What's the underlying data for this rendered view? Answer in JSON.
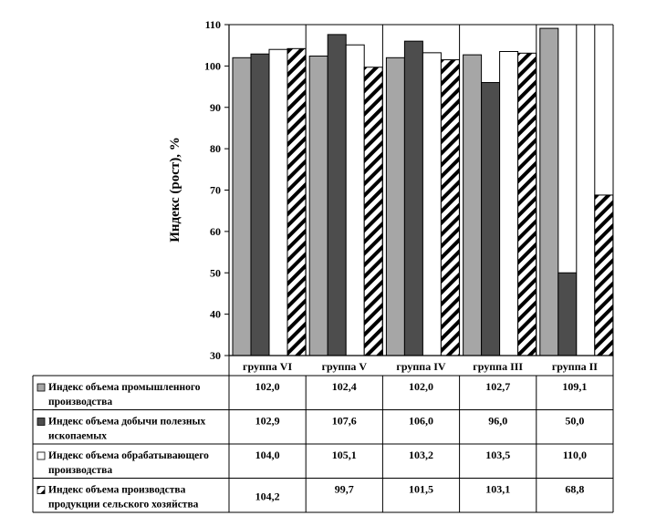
{
  "chart_data": {
    "type": "bar",
    "ylabel": "Индекс (рост), %",
    "ylim": [
      30,
      110
    ],
    "yticks": [
      30,
      40,
      50,
      60,
      70,
      80,
      90,
      100,
      110
    ],
    "categories": [
      "группа VI",
      "группа V",
      "группа IV",
      "группа III",
      "группа II"
    ],
    "series": [
      {
        "name": "Индекс объема промышленного производства",
        "label_lines": [
          "Индекс объема промышленного",
          "производства"
        ],
        "values": [
          102.0,
          102.4,
          102.0,
          102.7,
          109.1
        ],
        "labels": [
          "102,0",
          "102,4",
          "102,0",
          "102,7",
          "109,1"
        ],
        "fill": "#a6a6a6"
      },
      {
        "name": "Индекс объема добычи полезных ископаемых",
        "label_lines": [
          "Индекс объема добычи полезных",
          "ископаемых"
        ],
        "values": [
          102.9,
          107.6,
          106.0,
          96.0,
          50.0
        ],
        "labels": [
          "102,9",
          "107,6",
          "106,0",
          "96,0",
          "50,0"
        ],
        "fill": "#4d4d4d"
      },
      {
        "name": "Индекс объема обрабатывающего производства",
        "label_lines": [
          "Индекс объема обрабатывающего",
          "производства"
        ],
        "values": [
          104.0,
          105.1,
          103.2,
          103.5,
          110.0
        ],
        "labels": [
          "104,0",
          "105,1",
          "103,2",
          "103,5",
          "110,0"
        ],
        "fill": "#ffffff"
      },
      {
        "name": "Индекс объема производства продукции сельского хозяйства",
        "label_lines": [
          "Индекс объема производства",
          "продукции сельского хозяйства"
        ],
        "values": [
          104.2,
          99.7,
          101.5,
          103.1,
          68.8
        ],
        "labels": [
          "104,2",
          "99,7",
          "101,5",
          "103,1",
          "68,8"
        ],
        "fill": "hatch"
      }
    ],
    "grid": false,
    "legend": "data-table"
  }
}
